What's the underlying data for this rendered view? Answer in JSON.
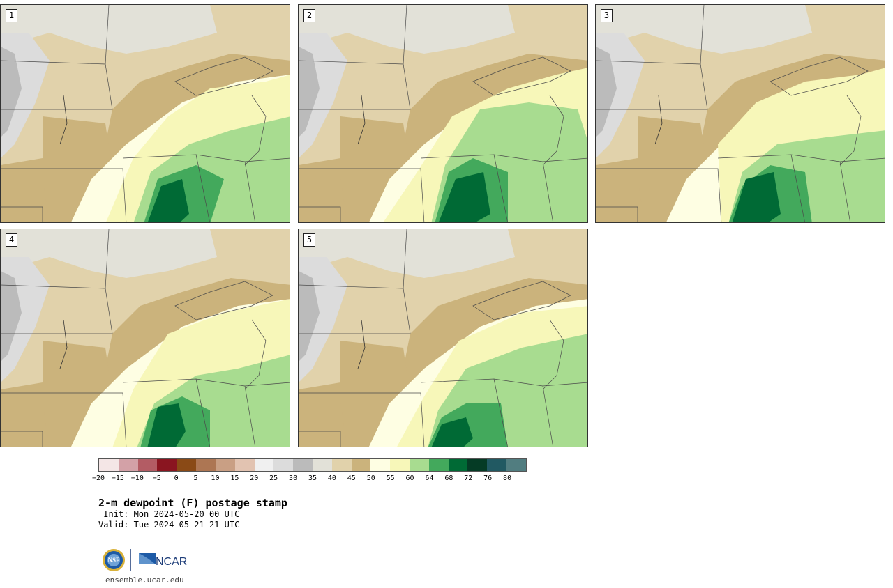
{
  "figure": {
    "title": "2-m dewpoint (F) postage stamp",
    "init": " Init: Mon 2024-05-20 00 UTC",
    "valid": "Valid: Tue 2024-05-21 21 UTC",
    "website": "ensemble.ucar.edu",
    "logos": {
      "nsf_logo": "NSF",
      "ncar_logo": "NCAR"
    }
  },
  "panels": [
    {
      "label": "1"
    },
    {
      "label": "2"
    },
    {
      "label": "3"
    },
    {
      "label": "4"
    },
    {
      "label": "5"
    }
  ],
  "colorbar": {
    "tick_labels": [
      "−20",
      "−15",
      "−10",
      "−5",
      "0",
      "5",
      "10",
      "15",
      "20",
      "25",
      "30",
      "35",
      "40",
      "45",
      "50",
      "55",
      "60",
      "64",
      "68",
      "72",
      "76",
      "80"
    ],
    "colors": [
      "#f4e6e6",
      "#d3a1a7",
      "#b35c64",
      "#8a1520",
      "#8a4a16",
      "#ad7653",
      "#c99f84",
      "#e2c3b1",
      "#f0f0f0",
      "#dcdcdc",
      "#bbbbbb",
      "#e2e1d8",
      "#e1d2ab",
      "#cbb37c",
      "#fefee3",
      "#f7f7b9",
      "#a8dc90",
      "#43a95c",
      "#006a35",
      "#053b25",
      "#215962",
      "#517d80"
    ]
  }
}
